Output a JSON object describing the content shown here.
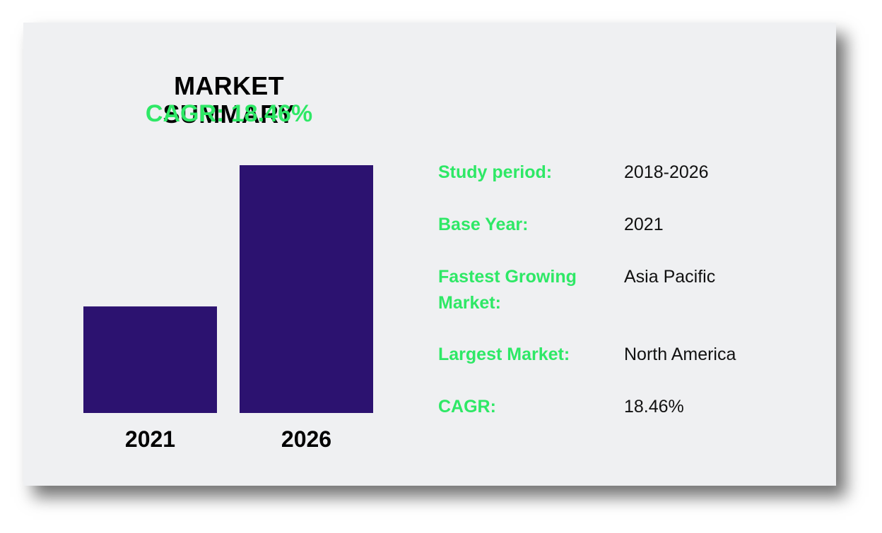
{
  "colors": {
    "accent_green": "#2ee866",
    "bar_purple": "#2c1270",
    "card_background": "#eff0f2",
    "text_dark": "#000000"
  },
  "summary": {
    "title": "MARKET SUMMARY",
    "subtitle": "CAGR: 18.46%"
  },
  "chart_data": {
    "type": "bar",
    "categories": [
      "2021",
      "2026"
    ],
    "values": [
      0.43,
      1.0
    ],
    "title": "",
    "xlabel": "",
    "ylabel": "",
    "ylim": [
      0,
      1
    ],
    "grid": false,
    "legend": "none"
  },
  "info": {
    "rows": [
      {
        "label": "Study period:",
        "value": "2018-2026"
      },
      {
        "label": "Base Year:",
        "value": "2021"
      },
      {
        "label": "Fastest Growing Market:",
        "value": "Asia Pacific"
      },
      {
        "label": "Largest Market:",
        "value": "North America"
      },
      {
        "label": "CAGR:",
        "value": "18.46%"
      }
    ]
  }
}
